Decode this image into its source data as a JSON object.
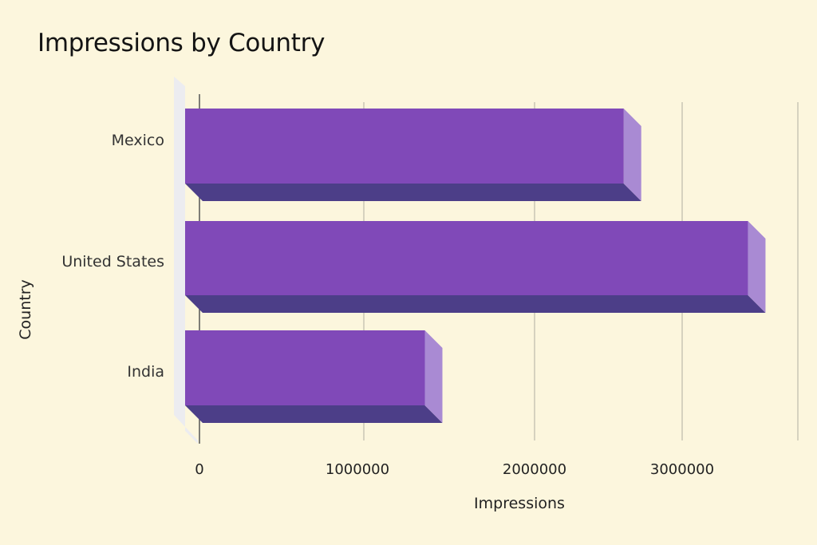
{
  "chart_data": {
    "type": "bar",
    "orientation": "horizontal",
    "title": "Impressions by Country",
    "xlabel": "Impressions",
    "ylabel": "Country",
    "categories": [
      "Mexico",
      "United States",
      "India"
    ],
    "values": [
      2700000,
      3450000,
      1500000
    ],
    "xticks": [
      0,
      1000000,
      2000000,
      3000000
    ],
    "xtick_labels": [
      "0",
      "1000000",
      "2000000",
      "3000000"
    ],
    "grid": "vertical",
    "legend": "none",
    "colors": {
      "bar_front": "#8049b8",
      "bar_side": "#a98ad3",
      "bar_bottom": "#4c3e88",
      "background": "#fcf6dd",
      "grid": "#d6d2bf",
      "wall": "#ececf0"
    }
  }
}
